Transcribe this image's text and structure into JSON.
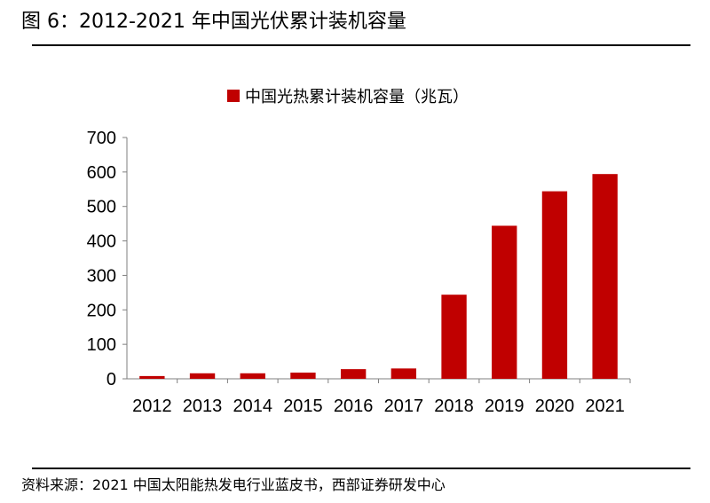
{
  "figure": {
    "title": "图 6：2012-2021 年中国光伏累计装机容量",
    "source": "资料来源：2021 中国太阳能热发电行业蓝皮书，西部证券研发中心"
  },
  "chart_data": {
    "type": "bar",
    "categories": [
      "2012",
      "2013",
      "2014",
      "2015",
      "2016",
      "2017",
      "2018",
      "2019",
      "2020",
      "2021"
    ],
    "series": [
      {
        "name": "中国光热累计装机容量（兆瓦）",
        "values": [
          8,
          16,
          16,
          18,
          28,
          30,
          244,
          444,
          544,
          594
        ]
      }
    ],
    "ylim": [
      0,
      700
    ],
    "yticks": [
      0,
      100,
      200,
      300,
      400,
      500,
      600,
      700
    ],
    "grid": false,
    "legend_position": "top",
    "bar_color": "#C00000"
  }
}
